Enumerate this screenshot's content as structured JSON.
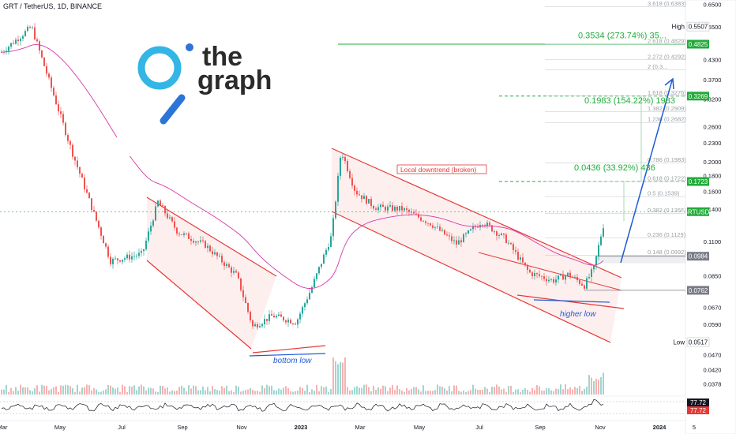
{
  "header": {
    "title": "GRT / TetherUS, 1D, BINANCE"
  },
  "logo": {
    "line1": "the",
    "line2": "graph"
  },
  "chart_data": {
    "type": "candlestick",
    "title": "GRT / TetherUS, 1D, BINANCE",
    "y_scale": "log",
    "ylim": [
      0.0355,
      0.672
    ],
    "y_ticks": [
      {
        "v": 0.65,
        "t": "0.6500"
      },
      {
        "v": 0.55,
        "t": "0.5500"
      },
      {
        "v": 0.43,
        "t": "0.4300"
      },
      {
        "v": 0.37,
        "t": "0.3700"
      },
      {
        "v": 0.32,
        "t": "0.3200"
      },
      {
        "v": 0.26,
        "t": "0.2600"
      },
      {
        "v": 0.23,
        "t": "0.2300"
      },
      {
        "v": 0.2,
        "t": "0.2000"
      },
      {
        "v": 0.18,
        "t": "0.1800"
      },
      {
        "v": 0.16,
        "t": "0.1600"
      },
      {
        "v": 0.14,
        "t": "0.1400"
      },
      {
        "v": 0.11,
        "t": "0.1100"
      },
      {
        "v": 0.085,
        "t": "0.0850"
      },
      {
        "v": 0.067,
        "t": "0.0670"
      },
      {
        "v": 0.059,
        "t": "0.0590"
      },
      {
        "v": 0.047,
        "t": "0.0470"
      },
      {
        "v": 0.042,
        "t": "0.0420"
      },
      {
        "v": 0.0378,
        "t": "0.0378"
      }
    ],
    "x_ticks": [
      "Mar",
      "May",
      "Jul",
      "Sep",
      "Nov",
      "2023",
      "Mar",
      "May",
      "Jul",
      "Sep",
      "Nov",
      "2024",
      "5"
    ],
    "price_labels": [
      {
        "v": 0.5507,
        "t": "0.5507",
        "label": "High",
        "color": "#ffffff"
      },
      {
        "v": 0.4825,
        "t": "0.4825",
        "color": "#22ab3a"
      },
      {
        "v": 0.3269,
        "t": "0.3269",
        "color": "#22ab3a"
      },
      {
        "v": 0.1723,
        "t": "0.1723",
        "color": "#22ab3a"
      },
      {
        "v": 0.1374,
        "t": "GRTUSDT",
        "color": "#22ab3a"
      },
      {
        "v": 0.0984,
        "t": "0.0984",
        "color": "#787b86"
      },
      {
        "v": 0.0762,
        "t": "0.0762",
        "color": "#787b86"
      },
      {
        "v": 0.0517,
        "t": "0.0517",
        "label": "Low",
        "color": "#ffffff"
      }
    ],
    "fib_levels": [
      {
        "v": 0.6383,
        "t": "3.618 (0.6383)"
      },
      {
        "v": 0.4829,
        "t": "2.618 (0.4829)"
      },
      {
        "v": 0.4292,
        "t": "2.272 (0.4292)"
      },
      {
        "v": 0.398,
        "t": "2 (0.3..."
      },
      {
        "v": 0.3276,
        "t": "1.618 (0.3276)"
      },
      {
        "v": 0.2909,
        "t": "1.382 (0.2909)"
      },
      {
        "v": 0.2682,
        "t": "1.236 (0.2682)"
      },
      {
        "v": 0.1983,
        "t": "0.786 (0.1983)"
      },
      {
        "v": 0.1722,
        "t": "0.618 (0.1722)"
      },
      {
        "v": 0.1539,
        "t": "0.5 (0.1539)"
      },
      {
        "v": 0.1355,
        "t": "0.382 (0.1355)"
      },
      {
        "v": 0.1129,
        "t": "0.236 (0.1129)"
      },
      {
        "v": 0.0992,
        "t": "0.148 (0.0992)"
      }
    ],
    "targets": [
      {
        "t": "0.3534 (273.74%) 35...",
        "v": 0.505
      },
      {
        "t": "0.1983 (154.22%) 1983",
        "v": 0.31
      },
      {
        "t": "0.0436 (33.92%) 436",
        "v": 0.187
      }
    ],
    "annotations": {
      "local_downtrend": "Local downtrend (broken)",
      "bottom_low": "bottom low",
      "higher_low": "higher low"
    },
    "rsi": {
      "values": [
        "77.72",
        "77.72"
      ]
    },
    "colors": {
      "up": "#26a69a",
      "down": "#ef5350",
      "target": "#22ab3a",
      "channel": "#e53935",
      "arrow": "#1e5bd6",
      "ma": "#d63aa6"
    }
  }
}
